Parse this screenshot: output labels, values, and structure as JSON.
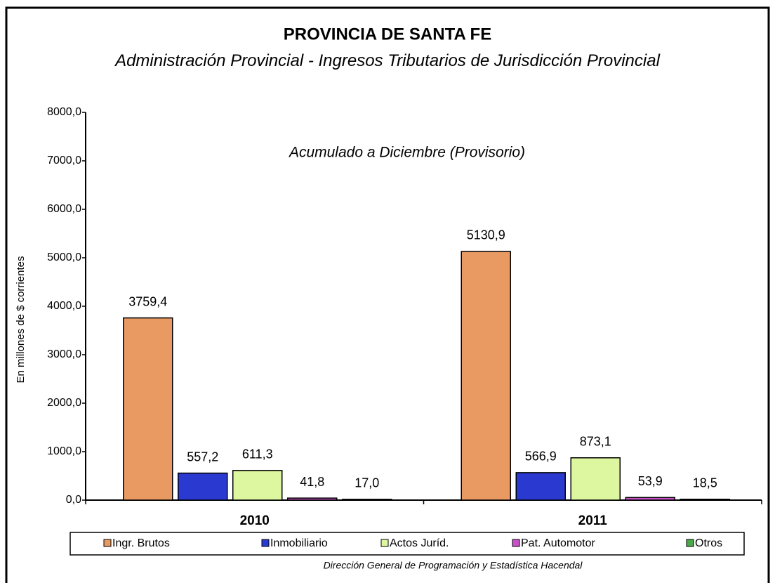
{
  "chart_data": {
    "type": "bar",
    "title": "PROVINCIA DE SANTA FE",
    "subtitle": "Administración Provincial - Ingresos Tributarios de Jurisdicción Provincial",
    "annotation": "Acumulado a Diciembre (Provisorio)",
    "y_label": "En millones de $ corrientes",
    "source": "Dirección General de Programación y Estadística Hacendal",
    "categories": [
      "2010",
      "2011"
    ],
    "series": [
      {
        "name": "Ingr. Brutos",
        "color": "#e89a62",
        "values": [
          3759.4,
          5130.9
        ],
        "value_labels": [
          "3759,4",
          "5130,9"
        ]
      },
      {
        "name": "Inmobiliario",
        "color": "#2a3ad0",
        "values": [
          557.2,
          566.9
        ],
        "value_labels": [
          "557,2",
          "566,9"
        ]
      },
      {
        "name": "Actos Juríd.",
        "color": "#dcf7a0",
        "values": [
          611.3,
          873.1
        ],
        "value_labels": [
          "611,3",
          "873,1"
        ]
      },
      {
        "name": "Pat. Automotor",
        "color": "#c850c8",
        "values": [
          41.8,
          53.9
        ],
        "value_labels": [
          "41,8",
          "53,9"
        ]
      },
      {
        "name": "Otros",
        "color": "#4aa84a",
        "values": [
          17.0,
          18.5
        ],
        "value_labels": [
          "17,0",
          "18,5"
        ]
      }
    ],
    "ylim": [
      0,
      8000
    ],
    "yticks": [
      {
        "value": 0,
        "label": "0,0"
      },
      {
        "value": 1000,
        "label": "1000,0"
      },
      {
        "value": 2000,
        "label": "2000,0"
      },
      {
        "value": 3000,
        "label": "3000,0"
      },
      {
        "value": 4000,
        "label": "4000,0"
      },
      {
        "value": 5000,
        "label": "5000,0"
      },
      {
        "value": 6000,
        "label": "6000,0"
      },
      {
        "value": 7000,
        "label": "7000,0"
      },
      {
        "value": 8000,
        "label": "8000,0"
      }
    ],
    "legend": "bottom"
  }
}
